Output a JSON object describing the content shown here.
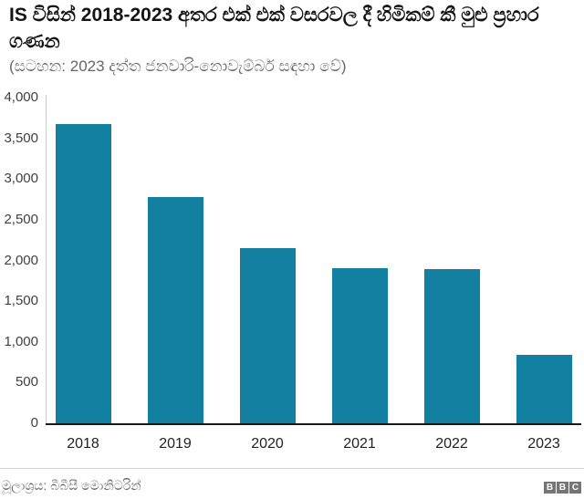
{
  "header": {
    "title": "IS විසින් 2018-2023 අතර එක් එක් වසරවල දී හිමිකම් කී මුළු ප්‍රහාර ගණන",
    "subtitle": "(සටහන: 2023 දත්ත ජනවාරි-නොවැම්බර් සඳහා වේ)"
  },
  "chart_data": {
    "type": "bar",
    "title": "IS විසින් 2018-2023 අතර එක් එක් වසරවල දී හිමිකම් කී මුළු ප්‍රහාර ගණන",
    "subtitle": "(සටහන: 2023 දත්ත ජනවාරි-නොවැම්බර් සඳහා වේ)",
    "categories": [
      "2018",
      "2019",
      "2020",
      "2021",
      "2022",
      "2023"
    ],
    "values": [
      3670,
      2780,
      2150,
      1900,
      1890,
      840
    ],
    "xlabel": "",
    "ylabel": "",
    "ylim": [
      0,
      4000
    ],
    "yticks": [
      0,
      500,
      1000,
      1500,
      2000,
      2500,
      3000,
      3500,
      4000
    ],
    "ytick_labels": [
      "0",
      "500",
      "1,000",
      "1,500",
      "2,000",
      "2,500",
      "3,000",
      "3,500",
      "4,000"
    ],
    "grid": false,
    "legend": false,
    "bar_color": "#1380A1"
  },
  "footer": {
    "source": "මූලාශ්‍රය: බීබීසී මොනිටරින්",
    "logo_letters": [
      "B",
      "B",
      "C"
    ]
  },
  "colors": {
    "bar": "#1380A1",
    "title_text": "#141414",
    "subtitle_text": "#666666",
    "axis_text": "#404040",
    "baseline": "#1a1a1a",
    "footer_text": "#696969",
    "logo_block": "#757575"
  }
}
